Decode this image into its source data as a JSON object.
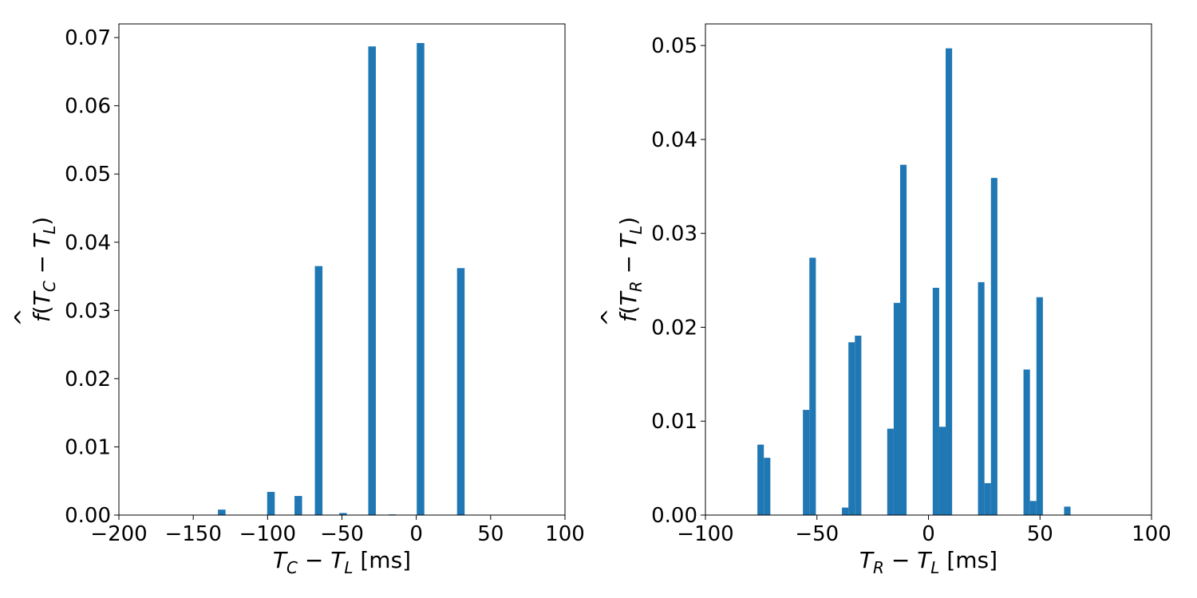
{
  "chart_data": [
    {
      "type": "bar",
      "xlabel_parts": {
        "var1": "T",
        "sub1": "C",
        "op": " − ",
        "var2": "T",
        "sub2": "L",
        "unit": " [ms]"
      },
      "ylabel_parts": {
        "fn": "f",
        "hat": "^",
        "var1": "T",
        "sub1": "C",
        "op": " − ",
        "var2": "T",
        "sub2": "L"
      },
      "xlim": [
        -200,
        100
      ],
      "ylim": [
        0,
        0.072
      ],
      "xticks": [
        -200,
        -150,
        -100,
        -50,
        0,
        50,
        100
      ],
      "xtick_labels": [
        "−200",
        "−150",
        "−100",
        "−50",
        "0",
        "50",
        "100"
      ],
      "yticks": [
        0.0,
        0.01,
        0.02,
        0.03,
        0.04,
        0.05,
        0.06,
        0.07
      ],
      "ytick_labels": [
        "0.00",
        "0.01",
        "0.02",
        "0.03",
        "0.04",
        "0.05",
        "0.06",
        "0.07"
      ],
      "bar_color": "#1f77b4",
      "bars": [
        {
          "x0": -133.4,
          "x1": -128.3,
          "value": 0.0008
        },
        {
          "x0": -100.3,
          "x1": -95.2,
          "value": 0.0034
        },
        {
          "x0": -81.9,
          "x1": -76.8,
          "value": 0.0028
        },
        {
          "x0": -68.2,
          "x1": -63.1,
          "value": 0.0365
        },
        {
          "x0": -51.8,
          "x1": -46.7,
          "value": 0.0003
        },
        {
          "x0": -32.3,
          "x1": -27.2,
          "value": 0.0687
        },
        {
          "x0": -18.6,
          "x1": -13.5,
          "value": 0.0001
        },
        {
          "x0": 0.3,
          "x1": 5.4,
          "value": 0.0692
        },
        {
          "x0": 27.4,
          "x1": 32.5,
          "value": 0.0362
        }
      ]
    },
    {
      "type": "bar",
      "xlabel_parts": {
        "var1": "T",
        "sub1": "R",
        "op": " − ",
        "var2": "T",
        "sub2": "L",
        "unit": " [ms]"
      },
      "ylabel_parts": {
        "fn": "f",
        "hat": "^",
        "var1": "T",
        "sub1": "R",
        "op": " − ",
        "var2": "T",
        "sub2": "L"
      },
      "xlim": [
        -100,
        100
      ],
      "ylim": [
        0,
        0.0523
      ],
      "xticks": [
        -100,
        -50,
        0,
        50,
        100
      ],
      "xtick_labels": [
        "−100",
        "−50",
        "0",
        "50",
        "100"
      ],
      "yticks": [
        0.0,
        0.01,
        0.02,
        0.03,
        0.04,
        0.05
      ],
      "ytick_labels": [
        "0.00",
        "0.01",
        "0.02",
        "0.03",
        "0.04",
        "0.05"
      ],
      "bar_color": "#1f77b4",
      "bars": [
        {
          "x0": -76.7,
          "x1": -73.8,
          "value": 0.0075
        },
        {
          "x0": -73.8,
          "x1": -70.9,
          "value": 0.0061
        },
        {
          "x0": -56.3,
          "x1": -53.4,
          "value": 0.0112
        },
        {
          "x0": -53.4,
          "x1": -50.5,
          "value": 0.0274
        },
        {
          "x0": -38.8,
          "x1": -35.9,
          "value": 0.0008
        },
        {
          "x0": -35.9,
          "x1": -33.0,
          "value": 0.0184
        },
        {
          "x0": -33.0,
          "x1": -30.1,
          "value": 0.0191
        },
        {
          "x0": -18.5,
          "x1": -15.6,
          "value": 0.0092
        },
        {
          "x0": -15.6,
          "x1": -12.7,
          "value": 0.0226
        },
        {
          "x0": -12.7,
          "x1": -9.8,
          "value": 0.0373
        },
        {
          "x0": 1.9,
          "x1": 4.8,
          "value": 0.0242
        },
        {
          "x0": 4.8,
          "x1": 7.7,
          "value": 0.0094
        },
        {
          "x0": 7.7,
          "x1": 10.6,
          "value": 0.0497
        },
        {
          "x0": 22.2,
          "x1": 25.1,
          "value": 0.0248
        },
        {
          "x0": 25.1,
          "x1": 28.0,
          "value": 0.0034
        },
        {
          "x0": 28.0,
          "x1": 30.9,
          "value": 0.0359
        },
        {
          "x0": 42.6,
          "x1": 45.5,
          "value": 0.0155
        },
        {
          "x0": 45.5,
          "x1": 48.4,
          "value": 0.0015
        },
        {
          "x0": 48.4,
          "x1": 51.3,
          "value": 0.0232
        },
        {
          "x0": 60.8,
          "x1": 63.7,
          "value": 0.0009
        }
      ]
    }
  ]
}
